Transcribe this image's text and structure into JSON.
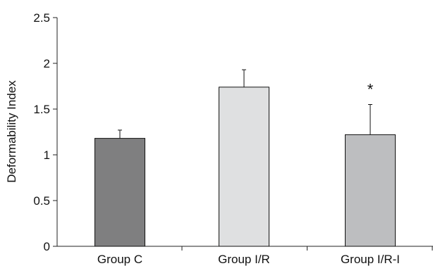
{
  "chart_data": {
    "type": "bar",
    "title": "",
    "xlabel": "",
    "ylabel": "Deformability Index",
    "ylim": [
      0,
      2.5
    ],
    "yticks": [
      "0",
      "0.5",
      "1",
      "1.5",
      "2",
      "2.5"
    ],
    "grid": false,
    "categories": [
      "Group C",
      "Group I/R",
      "Group I/R-I"
    ],
    "values": [
      1.18,
      1.74,
      1.22
    ],
    "errors": [
      0.09,
      0.19,
      0.33
    ],
    "bar_colors": [
      "#7f7f80",
      "#dfe0e1",
      "#bdbec0"
    ],
    "annotations": [
      {
        "category": "Group I/R-I",
        "text": "*"
      }
    ]
  }
}
